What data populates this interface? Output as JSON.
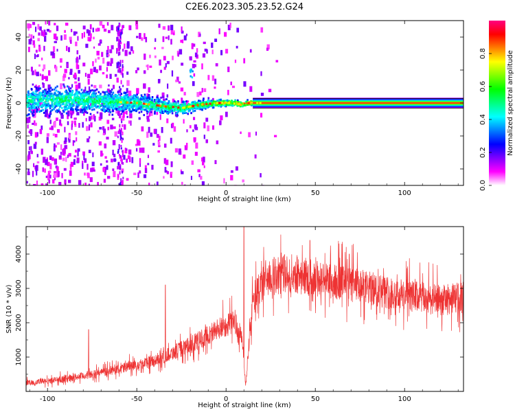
{
  "title": "C2E6.2023.305.23.52.G24",
  "chart_data": [
    {
      "type": "heatmap",
      "name": "spectrogram",
      "xlabel": "Height of straight line (km)",
      "ylabel": "Frequency (Hz)",
      "xlim": [
        -112,
        133
      ],
      "ylim": [
        -50,
        50
      ],
      "xticks": [
        -100,
        -50,
        0,
        50,
        100
      ],
      "yticks": [
        -40,
        -20,
        0,
        20,
        40
      ],
      "colorbar": {
        "label": "Normalized spectral amplitude",
        "range": [
          0,
          1
        ],
        "ticks": [
          "0.0",
          "0.2",
          "0.4",
          "0.6",
          "0.8"
        ],
        "colors": [
          "#ffffff",
          "#ff00ff",
          "#7f00ff",
          "#0000ff",
          "#0080ff",
          "#00ffff",
          "#00ff80",
          "#00ff00",
          "#80ff00",
          "#ffff00",
          "#ff8000",
          "#ff0000",
          "#ff0080"
        ]
      },
      "ridge": [
        {
          "x": -110,
          "spread": 8.0,
          "amp": 0.45
        },
        {
          "x": -90,
          "spread": 7.0,
          "amp": 0.5
        },
        {
          "x": -70,
          "spread": 6.0,
          "amp": 0.5
        },
        {
          "x": -50,
          "spread": 5.0,
          "amp": 0.5
        },
        {
          "x": -30,
          "spread": 3.5,
          "amp": 0.55
        },
        {
          "x": -15,
          "spread": 2.5,
          "amp": 0.6
        },
        {
          "x": 0,
          "spread": 1.5,
          "amp": 0.75
        },
        {
          "x": 20,
          "spread": 1.0,
          "amp": 0.9
        },
        {
          "x": 60,
          "spread": 1.0,
          "amp": 0.95
        },
        {
          "x": 133,
          "spread": 1.0,
          "amp": 0.95
        }
      ],
      "ridge_points": [
        {
          "x": -110,
          "y": 1
        },
        {
          "x": -90,
          "y": 2
        },
        {
          "x": -70,
          "y": 1
        },
        {
          "x": -50,
          "y": 0
        },
        {
          "x": -35,
          "y": -2
        },
        {
          "x": -25,
          "y": -3
        },
        {
          "x": -15,
          "y": -1
        },
        {
          "x": -5,
          "y": 0
        },
        {
          "x": 5,
          "y": 0
        },
        {
          "x": 8,
          "y": -1
        },
        {
          "x": 12,
          "y": 0
        },
        {
          "x": 133,
          "y": 0
        }
      ]
    },
    {
      "type": "line",
      "name": "snr",
      "color": "#ee3333",
      "xlabel": "Height of straight line (km)",
      "ylabel": "SNR (10 * v/v)",
      "xlim": [
        -112,
        133
      ],
      "ylim": [
        0,
        4800
      ],
      "xticks": [
        -100,
        -50,
        0,
        50,
        100
      ],
      "yticks": [
        1000,
        2000,
        3000,
        4000
      ],
      "trend": [
        {
          "x": -112,
          "y": 250
        },
        {
          "x": -100,
          "y": 300
        },
        {
          "x": -80,
          "y": 450
        },
        {
          "x": -60,
          "y": 650
        },
        {
          "x": -40,
          "y": 900
        },
        {
          "x": -20,
          "y": 1350
        },
        {
          "x": -5,
          "y": 1800
        },
        {
          "x": 5,
          "y": 2050
        },
        {
          "x": 9,
          "y": 1500
        },
        {
          "x": 11,
          "y": 150
        },
        {
          "x": 13,
          "y": 1500
        },
        {
          "x": 15,
          "y": 2600
        },
        {
          "x": 22,
          "y": 3300
        },
        {
          "x": 35,
          "y": 3450
        },
        {
          "x": 55,
          "y": 3250
        },
        {
          "x": 75,
          "y": 3050
        },
        {
          "x": 100,
          "y": 2800
        },
        {
          "x": 120,
          "y": 2650
        },
        {
          "x": 133,
          "y": 2750
        }
      ],
      "spikes": [
        {
          "x": 10,
          "y": 4800
        },
        {
          "x": 69,
          "y": 4000
        },
        {
          "x": 47,
          "y": 4400
        },
        {
          "x": -77,
          "y": 1800
        },
        {
          "x": -34,
          "y": 3100
        }
      ]
    }
  ]
}
